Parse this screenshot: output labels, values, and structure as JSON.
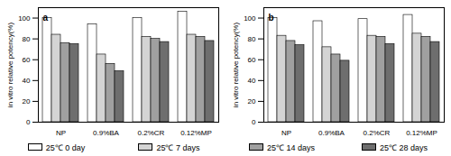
{
  "chart_data": [
    {
      "type": "bar",
      "title": "a",
      "y_label": "in vitro relative potency(%)",
      "categories": [
        "NP",
        "0.9%BA",
        "0.2%CR",
        "0.12%MP"
      ],
      "series": [
        {
          "name": "25℃ 0 day",
          "color": "#ffffff",
          "values": [
            100,
            94,
            100,
            106
          ]
        },
        {
          "name": "25℃ 7 days",
          "color": "#d4d4d4",
          "values": [
            84,
            65,
            82,
            84
          ]
        },
        {
          "name": "25℃ 14 days",
          "color": "#a0a0a0",
          "values": [
            76,
            56,
            80,
            82
          ]
        },
        {
          "name": "25℃ 28 days",
          "color": "#6e6e6e",
          "values": [
            75,
            49,
            77,
            78
          ]
        }
      ],
      "ylim": [
        0,
        110
      ],
      "yticks": [
        0,
        20,
        40,
        60,
        80,
        100
      ],
      "grid": false,
      "legend": "bottom"
    },
    {
      "type": "bar",
      "title": "b",
      "y_label": "in vitro relative potency(%)",
      "categories": [
        "NP",
        "0.9%BA",
        "0.2%CR",
        "0.12%MP"
      ],
      "series": [
        {
          "name": "25℃ 0 day",
          "color": "#ffffff",
          "values": [
            100,
            97,
            99,
            103
          ]
        },
        {
          "name": "25℃ 7 days",
          "color": "#d4d4d4",
          "values": [
            83,
            72,
            83,
            85
          ]
        },
        {
          "name": "25℃ 14 days",
          "color": "#a0a0a0",
          "values": [
            78,
            65,
            82,
            82
          ]
        },
        {
          "name": "25℃ 28 days",
          "color": "#6e6e6e",
          "values": [
            74,
            59,
            75,
            77
          ]
        }
      ],
      "ylim": [
        0,
        110
      ],
      "yticks": [
        0,
        20,
        40,
        60,
        80,
        100
      ],
      "grid": false,
      "legend": "bottom"
    }
  ]
}
